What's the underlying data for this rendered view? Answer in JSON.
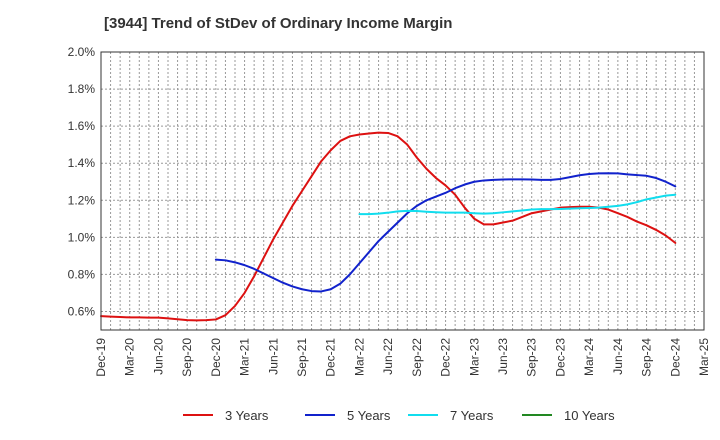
{
  "chart_data": {
    "type": "line",
    "title": "[3944]  Trend of StDev of Ordinary Income Margin",
    "xlabel": "",
    "ylabel": "",
    "x_ticks": [
      "Dec-19",
      "Mar-20",
      "Jun-20",
      "Sep-20",
      "Dec-20",
      "Mar-21",
      "Jun-21",
      "Sep-21",
      "Dec-21",
      "Mar-22",
      "Jun-22",
      "Sep-22",
      "Dec-22",
      "Mar-23",
      "Jun-23",
      "Sep-23",
      "Dec-23",
      "Mar-24",
      "Jun-24",
      "Sep-24",
      "Dec-24",
      "Mar-25"
    ],
    "y_ticks": [
      "0.6%",
      "0.8%",
      "1.0%",
      "1.2%",
      "1.4%",
      "1.6%",
      "1.8%",
      "2.0%"
    ],
    "ylim": [
      0.5,
      2.0
    ],
    "grid": true,
    "legend_position": "bottom",
    "series": [
      {
        "name": "3 Years",
        "color": "#dd1111",
        "x": [
          "Dec-19",
          "Jan-20",
          "Feb-20",
          "Mar-20",
          "Apr-20",
          "May-20",
          "Jun-20",
          "Jul-20",
          "Aug-20",
          "Sep-20",
          "Oct-20",
          "Nov-20",
          "Dec-20",
          "Jan-21",
          "Feb-21",
          "Mar-21",
          "Apr-21",
          "May-21",
          "Jun-21",
          "Jul-21",
          "Aug-21",
          "Sep-21",
          "Oct-21",
          "Nov-21",
          "Dec-21",
          "Jan-22",
          "Feb-22",
          "Mar-22",
          "Apr-22",
          "May-22",
          "Jun-22",
          "Jul-22",
          "Aug-22",
          "Sep-22",
          "Oct-22",
          "Nov-22",
          "Dec-22",
          "Jan-23",
          "Feb-23",
          "Mar-23",
          "Apr-23",
          "May-23",
          "Jun-23",
          "Jul-23",
          "Aug-23",
          "Sep-23",
          "Oct-23",
          "Nov-23",
          "Dec-23",
          "Jan-24",
          "Feb-24",
          "Mar-24",
          "Apr-24",
          "May-24",
          "Jun-24",
          "Jul-24",
          "Aug-24",
          "Sep-24",
          "Oct-24",
          "Nov-24",
          "Dec-24"
        ],
        "values": [
          0.575,
          0.572,
          0.57,
          0.568,
          0.568,
          0.567,
          0.567,
          0.563,
          0.558,
          0.553,
          0.552,
          0.553,
          0.557,
          0.58,
          0.63,
          0.7,
          0.79,
          0.89,
          0.99,
          1.08,
          1.17,
          1.25,
          1.33,
          1.41,
          1.47,
          1.52,
          1.545,
          1.555,
          1.56,
          1.565,
          1.563,
          1.545,
          1.5,
          1.43,
          1.37,
          1.32,
          1.28,
          1.23,
          1.16,
          1.1,
          1.07,
          1.07,
          1.08,
          1.09,
          1.11,
          1.13,
          1.14,
          1.15,
          1.16,
          1.163,
          1.165,
          1.165,
          1.16,
          1.15,
          1.13,
          1.11,
          1.085,
          1.065,
          1.04,
          1.01,
          0.97
        ]
      },
      {
        "name": "5 Years",
        "color": "#1122cc",
        "x": [
          "Dec-20",
          "Jan-21",
          "Feb-21",
          "Mar-21",
          "Apr-21",
          "May-21",
          "Jun-21",
          "Jul-21",
          "Aug-21",
          "Sep-21",
          "Oct-21",
          "Nov-21",
          "Dec-21",
          "Jan-22",
          "Feb-22",
          "Mar-22",
          "Apr-22",
          "May-22",
          "Jun-22",
          "Jul-22",
          "Aug-22",
          "Sep-22",
          "Oct-22",
          "Nov-22",
          "Dec-22",
          "Jan-23",
          "Feb-23",
          "Mar-23",
          "Apr-23",
          "May-23",
          "Jun-23",
          "Jul-23",
          "Aug-23",
          "Sep-23",
          "Oct-23",
          "Nov-23",
          "Dec-23",
          "Jan-24",
          "Feb-24",
          "Mar-24",
          "Apr-24",
          "May-24",
          "Jun-24",
          "Jul-24",
          "Aug-24",
          "Sep-24",
          "Oct-24",
          "Nov-24",
          "Dec-24"
        ],
        "values": [
          0.88,
          0.876,
          0.865,
          0.85,
          0.83,
          0.805,
          0.78,
          0.755,
          0.735,
          0.72,
          0.71,
          0.708,
          0.72,
          0.75,
          0.8,
          0.86,
          0.92,
          0.98,
          1.03,
          1.08,
          1.13,
          1.17,
          1.2,
          1.22,
          1.24,
          1.265,
          1.285,
          1.3,
          1.307,
          1.31,
          1.312,
          1.313,
          1.313,
          1.312,
          1.31,
          1.31,
          1.315,
          1.325,
          1.335,
          1.342,
          1.345,
          1.346,
          1.345,
          1.34,
          1.336,
          1.332,
          1.32,
          1.3,
          1.275
        ]
      },
      {
        "name": "7 Years",
        "color": "#11ddee",
        "x": [
          "Mar-22",
          "Apr-22",
          "May-22",
          "Jun-22",
          "Jul-22",
          "Aug-22",
          "Sep-22",
          "Oct-22",
          "Nov-22",
          "Dec-22",
          "Jan-23",
          "Feb-23",
          "Mar-23",
          "Apr-23",
          "May-23",
          "Jun-23",
          "Jul-23",
          "Aug-23",
          "Sep-23",
          "Oct-23",
          "Nov-23",
          "Dec-23",
          "Jan-24",
          "Feb-24",
          "Mar-24",
          "Apr-24",
          "May-24",
          "Jun-24",
          "Jul-24",
          "Aug-24",
          "Sep-24",
          "Oct-24",
          "Nov-24",
          "Dec-24"
        ],
        "values": [
          1.125,
          1.125,
          1.128,
          1.133,
          1.14,
          1.143,
          1.142,
          1.138,
          1.135,
          1.133,
          1.133,
          1.133,
          1.13,
          1.128,
          1.13,
          1.135,
          1.14,
          1.145,
          1.15,
          1.152,
          1.152,
          1.153,
          1.155,
          1.157,
          1.158,
          1.16,
          1.165,
          1.17,
          1.178,
          1.19,
          1.205,
          1.215,
          1.225,
          1.23
        ]
      },
      {
        "name": "10 Years",
        "color": "#228822",
        "x": [],
        "values": []
      }
    ]
  }
}
